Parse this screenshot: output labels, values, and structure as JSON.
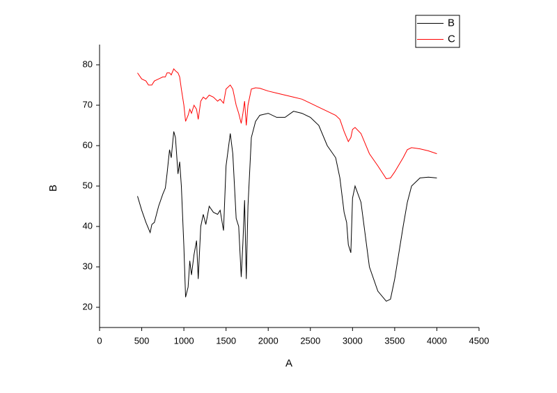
{
  "chart_data": {
    "type": "line",
    "xlabel": "A",
    "ylabel": "B",
    "x": [
      450,
      500,
      550,
      580,
      600,
      620,
      650,
      700,
      750,
      780,
      800,
      830,
      850,
      880,
      900,
      930,
      950,
      970,
      1000,
      1020,
      1050,
      1070,
      1090,
      1120,
      1150,
      1170,
      1200,
      1230,
      1260,
      1300,
      1350,
      1400,
      1430,
      1470,
      1500,
      1550,
      1580,
      1620,
      1650,
      1680,
      1700,
      1720,
      1740,
      1760,
      1800,
      1850,
      1900,
      2000,
      2100,
      2200,
      2300,
      2400,
      2500,
      2600,
      2700,
      2800,
      2850,
      2900,
      2930,
      2950,
      2980,
      3000,
      3030,
      3100,
      3200,
      3300,
      3400,
      3450,
      3500,
      3600,
      3650,
      3700,
      3800,
      3900,
      4000
    ],
    "series": [
      {
        "name": "B",
        "color": "#000000",
        "values": [
          47.5,
          44,
          41,
          39.5,
          38.5,
          40.5,
          41,
          45,
          48,
          49.5,
          53,
          59,
          57,
          63.5,
          62,
          53,
          56,
          50,
          35,
          22.5,
          25,
          31.5,
          28,
          33,
          36.5,
          27,
          40,
          43,
          40.5,
          45,
          43.5,
          43,
          44,
          39,
          55,
          63,
          58,
          42,
          40,
          27.5,
          36,
          46.5,
          27,
          45,
          62,
          66,
          67.5,
          68,
          67,
          67,
          68.5,
          68,
          67,
          65,
          60,
          57,
          52,
          43.5,
          41,
          35.5,
          33.5,
          47,
          50,
          46,
          30,
          24,
          21.5,
          22,
          27,
          40,
          46,
          50,
          52,
          52.2,
          52
        ]
      },
      {
        "name": "C",
        "color": "#ff0000",
        "values": [
          78,
          76.5,
          76,
          75,
          75,
          75,
          76,
          76.5,
          77,
          77,
          78,
          78,
          77.5,
          79,
          78.5,
          78,
          77,
          74,
          70,
          66,
          67.5,
          69,
          68,
          70,
          69,
          66.5,
          71,
          72,
          71.5,
          72.5,
          72,
          71,
          71.5,
          70.5,
          74,
          75,
          74,
          70,
          68,
          65.5,
          68,
          71,
          65,
          70,
          74,
          74.3,
          74.2,
          73.5,
          73,
          72.5,
          72,
          71.5,
          70.5,
          69.5,
          68.5,
          67.5,
          66.5,
          63.5,
          62,
          61,
          62,
          64,
          64.5,
          63,
          58,
          55,
          51.8,
          52,
          53.5,
          57,
          59,
          59.5,
          59.2,
          58.7,
          58
        ]
      }
    ],
    "xlim": [
      0,
      4500
    ],
    "xticks": [
      0,
      500,
      1000,
      1500,
      2000,
      2500,
      3000,
      3500,
      4000,
      4500
    ],
    "ylim": [
      15,
      85
    ],
    "yticks": [
      20,
      30,
      40,
      50,
      60,
      70,
      80
    ],
    "legend": "top-right"
  }
}
